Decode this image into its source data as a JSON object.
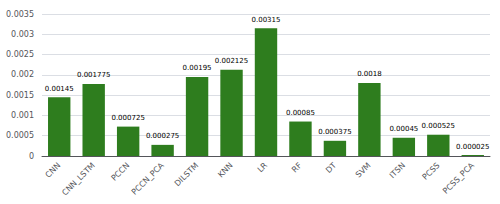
{
  "chart_data": {
    "type": "bar",
    "categories": [
      "CNN",
      "CNN_LSTM",
      "PCCN",
      "PCCN_PCA",
      "DILSTM",
      "KNN",
      "LR",
      "RF",
      "DT",
      "SVM",
      "ITSN",
      "PCSS",
      "PCSS_PCA"
    ],
    "values": [
      0.00145,
      0.001775,
      0.000725,
      0.000275,
      0.00195,
      0.002125,
      0.00315,
      0.00085,
      0.000375,
      0.0018,
      0.00045,
      0.000525,
      2.5e-05
    ],
    "color": "#2e7d1e",
    "ylim": [
      0,
      0.0035
    ],
    "yticks": [
      0,
      0.0005,
      0.001,
      0.0015,
      0.002,
      0.0025,
      0.003,
      0.0035
    ],
    "grid": true,
    "data_labels": true
  }
}
